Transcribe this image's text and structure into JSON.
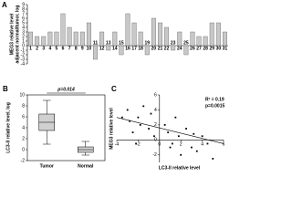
{
  "chart_data": [
    {
      "type": "bar",
      "panel": "A",
      "y_label": [
        "MEG3 relative level",
        "adjacent normal/tumor, log"
      ],
      "categories": [
        "1",
        "2",
        "3",
        "4",
        "5",
        "6",
        "7",
        "8",
        "9",
        "10",
        "11",
        "12",
        "13",
        "14",
        "15",
        "16",
        "17",
        "18",
        "19",
        "20",
        "21",
        "22",
        "23",
        "24",
        "25",
        "26",
        "27",
        "28",
        "29",
        "30",
        "31"
      ],
      "values": [
        3,
        2,
        2,
        3,
        3,
        7,
        4,
        3,
        3,
        5,
        -3,
        3,
        -1,
        3,
        -2,
        7,
        5,
        3,
        -2,
        6,
        5,
        4,
        -1,
        3,
        -2,
        3,
        2,
        2,
        5,
        5,
        3
      ],
      "color": "#c8c8c8",
      "ylim": [
        -4,
        9
      ],
      "yticks": [
        -4,
        -3,
        -2,
        -1,
        0,
        1,
        2,
        3,
        4,
        5,
        6,
        7,
        8,
        9
      ]
    },
    {
      "type": "box",
      "panel": "B",
      "annotation": "p=0.014",
      "y_label": "LC3-II relative level, log",
      "categories": [
        "Tumor",
        "Normal"
      ],
      "boxes": [
        {
          "min": 1,
          "q1": 3.5,
          "median": 5,
          "q3": 6.5,
          "max": 9
        },
        {
          "min": -1,
          "q1": -0.5,
          "median": 0,
          "q3": 0.5,
          "max": 1.5
        }
      ],
      "color": "#d0d0d0",
      "ylim": [
        -2,
        10
      ],
      "yticks": [
        -2,
        0,
        2,
        4,
        6,
        8,
        10
      ]
    },
    {
      "type": "scatter",
      "panel": "C",
      "annotations": [
        "R² = 0.19",
        "p=0.0015"
      ],
      "x_label": "LC3-II relative level",
      "y_label": "MEG3 relative level",
      "x": [
        -3.5,
        -3,
        -2.8,
        -2.5,
        -2,
        -1.8,
        -1.5,
        -1,
        -0.8,
        -0.5,
        0.5,
        0.8,
        1,
        1.5,
        1.8,
        2,
        2.5,
        3,
        3.2,
        3.5,
        4,
        4.5,
        5,
        1.2,
        -2.2
      ],
      "y": [
        3,
        4,
        2.5,
        1,
        3,
        2,
        4.5,
        1.5,
        3.5,
        0.5,
        2,
        1,
        -1,
        3,
        0.5,
        -2,
        1.5,
        -1,
        0.8,
        -1.5,
        0.5,
        -0.5,
        -2.5,
        -0.5,
        -0.5
      ],
      "fit_line": {
        "x": [
          -4,
          6
        ],
        "y": [
          3,
          -0.5
        ]
      },
      "xlim": [
        -4,
        6
      ],
      "xticks": [
        -4,
        -2,
        0,
        2,
        4,
        6
      ],
      "ylim": [
        -3,
        6
      ],
      "yticks": [
        -2,
        0,
        2,
        4,
        6
      ]
    }
  ]
}
